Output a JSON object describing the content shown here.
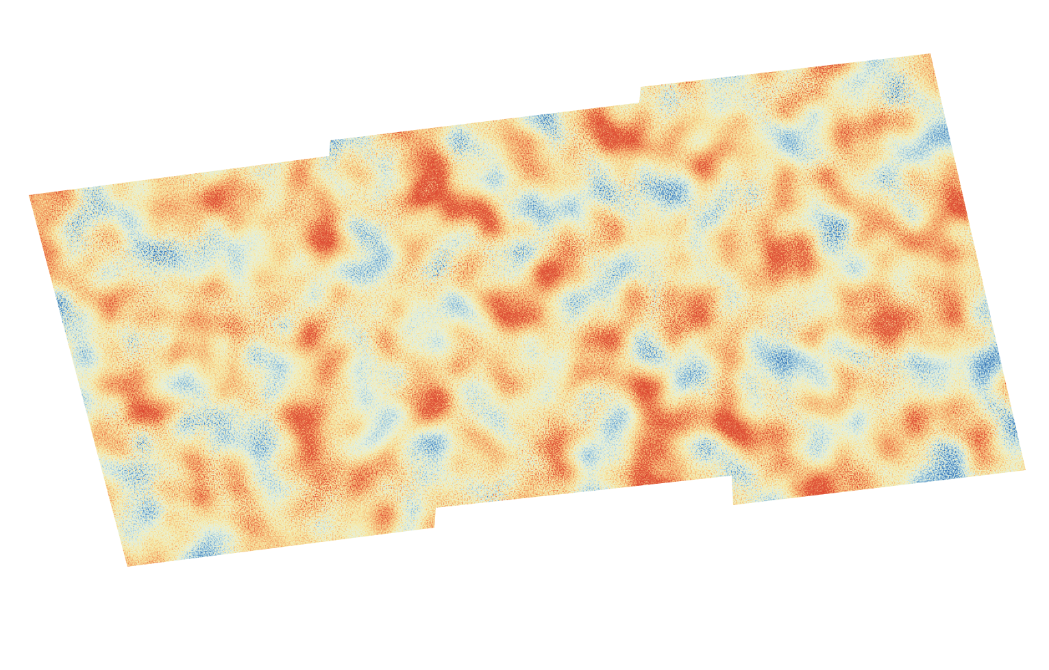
{
  "map": {
    "kind": "raster-overlay",
    "colormap": [
      "#3b78b8",
      "#8fbfdc",
      "#e6f2e4",
      "#f7e7a4",
      "#f4a86a",
      "#dc3f2c"
    ],
    "nodata_color": "#ffffff"
  }
}
